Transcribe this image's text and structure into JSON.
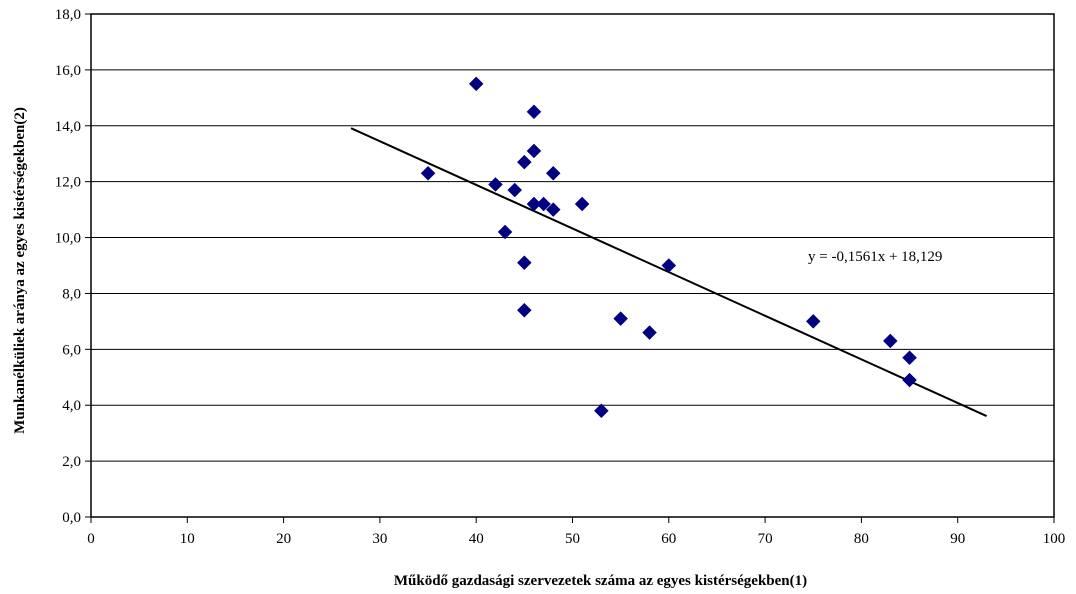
{
  "chart_data": {
    "type": "scatter",
    "xlabel": "Működő gazdasági szervezetek száma az egyes kistérségekben(1)",
    "ylabel": "Munkanélküliek aránya az egyes kistérségekben(2)",
    "xlim": [
      0,
      100
    ],
    "ylim": [
      0,
      18
    ],
    "x_ticks": [
      0,
      10,
      20,
      30,
      40,
      50,
      60,
      70,
      80,
      90,
      100
    ],
    "y_ticks": [
      0,
      2,
      4,
      6,
      8,
      10,
      12,
      14,
      16,
      18
    ],
    "x_tick_labels": [
      "0",
      "10",
      "20",
      "30",
      "40",
      "50",
      "60",
      "70",
      "80",
      "90",
      "100"
    ],
    "y_tick_labels": [
      "0,0",
      "2,0",
      "4,0",
      "6,0",
      "8,0",
      "10,0",
      "12,0",
      "14,0",
      "16,0",
      "18,0"
    ],
    "grid": "horizontal",
    "marker_color": "#000080",
    "points": [
      {
        "x": 35,
        "y": 12.3
      },
      {
        "x": 40,
        "y": 15.5
      },
      {
        "x": 42,
        "y": 11.9
      },
      {
        "x": 43,
        "y": 10.2
      },
      {
        "x": 44,
        "y": 11.7
      },
      {
        "x": 45,
        "y": 12.7
      },
      {
        "x": 45,
        "y": 9.1
      },
      {
        "x": 45,
        "y": 7.4
      },
      {
        "x": 46,
        "y": 14.5
      },
      {
        "x": 46,
        "y": 13.1
      },
      {
        "x": 46,
        "y": 11.2
      },
      {
        "x": 47,
        "y": 11.2
      },
      {
        "x": 48,
        "y": 12.3
      },
      {
        "x": 48,
        "y": 11.0
      },
      {
        "x": 51,
        "y": 11.2
      },
      {
        "x": 53,
        "y": 3.8
      },
      {
        "x": 55,
        "y": 7.1
      },
      {
        "x": 58,
        "y": 6.6
      },
      {
        "x": 60,
        "y": 9.0
      },
      {
        "x": 75,
        "y": 7.0
      },
      {
        "x": 83,
        "y": 6.3
      },
      {
        "x": 85,
        "y": 5.7
      },
      {
        "x": 85,
        "y": 4.9
      }
    ],
    "trendline": {
      "slope": -0.1561,
      "intercept": 18.129,
      "x_start": 27,
      "x_end": 93,
      "equation": "y = -0,1561x + 18,129"
    }
  }
}
